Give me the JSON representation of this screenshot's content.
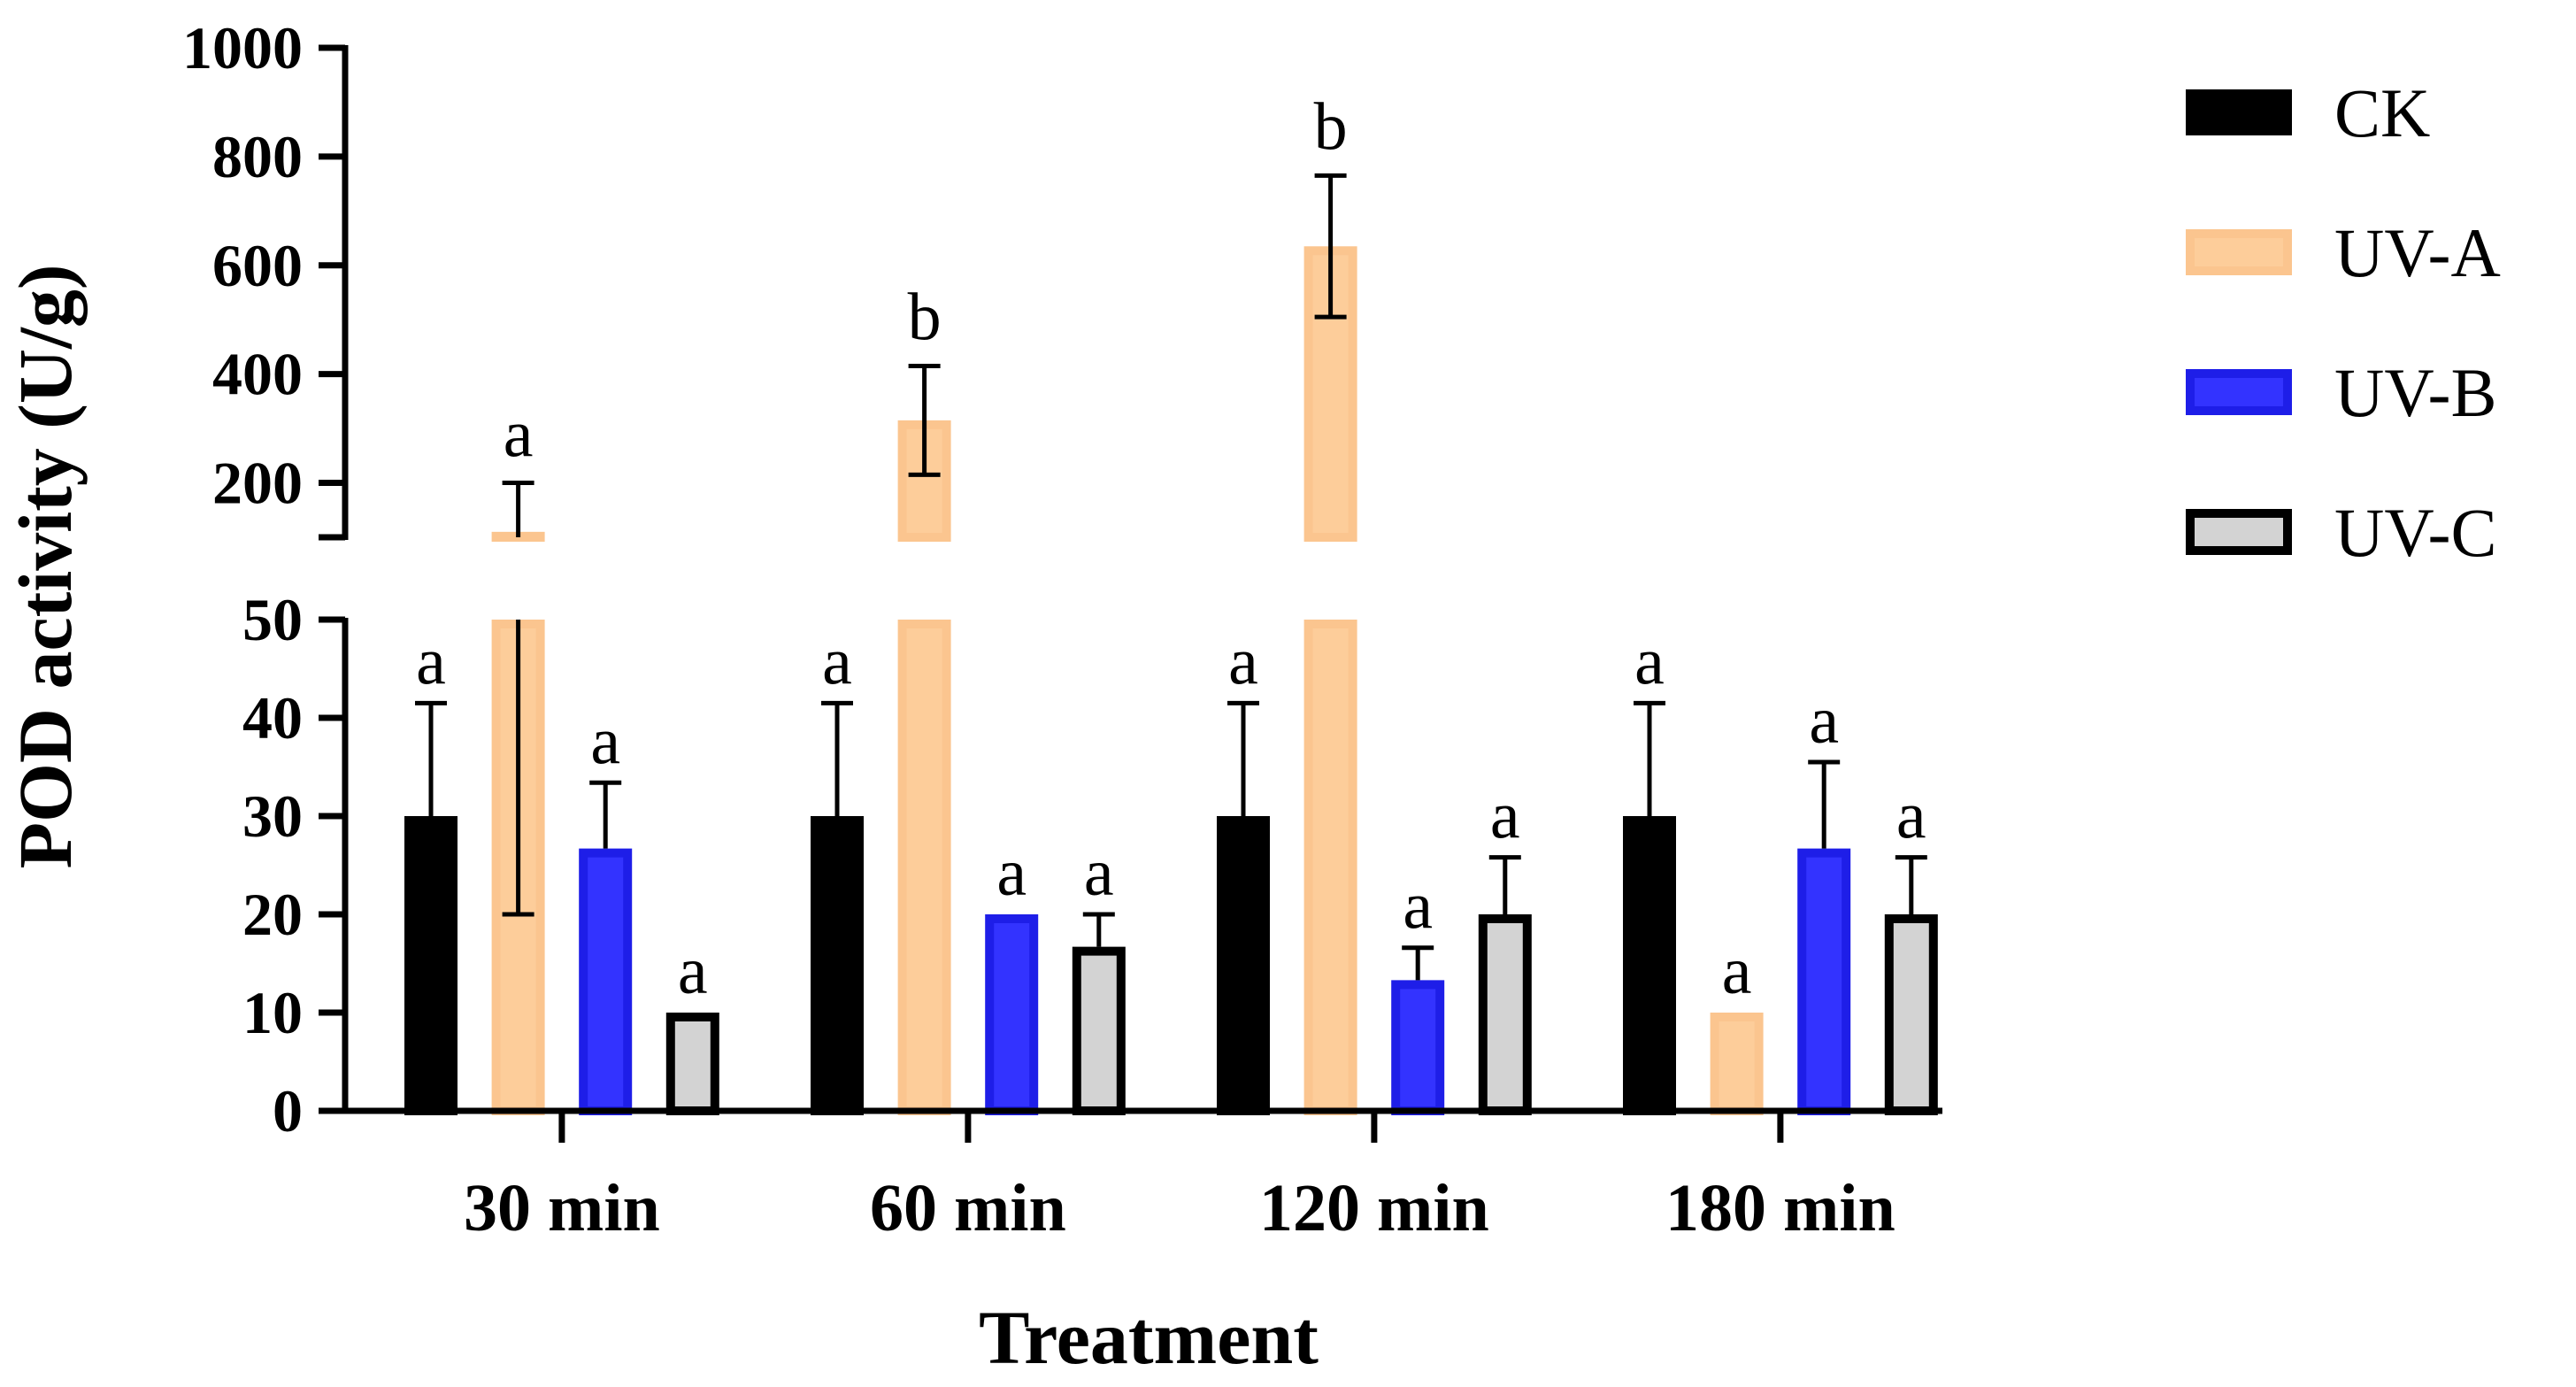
{
  "chart_data": {
    "type": "bar",
    "title": "",
    "xlabel": "Treatment",
    "ylabel": "POD activity (U/g)",
    "categories": [
      "30 min",
      "60 min",
      "120 min",
      "180 min"
    ],
    "axis_break": {
      "lower_ylim": [
        0,
        50
      ],
      "lower_ticks": [
        "0",
        "10",
        "20",
        "30",
        "40",
        "50"
      ],
      "upper_ylim": [
        100,
        1000
      ],
      "upper_ticks": [
        "200",
        "400",
        "600",
        "800",
        "1000"
      ]
    },
    "series": [
      {
        "name": "CK",
        "fill": "#000000",
        "stroke": "#000000",
        "values": [
          30,
          30,
          30,
          30
        ],
        "errors": [
          11.5,
          11.5,
          11.5,
          11.5
        ],
        "significance": [
          "a",
          "a",
          "a",
          "a"
        ]
      },
      {
        "name": "UV-A",
        "fill": "#FDCD9A",
        "stroke": "#FBC58F",
        "values": [
          110,
          315,
          635,
          10
        ],
        "errors": [
          90,
          100,
          130,
          0
        ],
        "significance": [
          "a",
          "b",
          "b",
          "a"
        ]
      },
      {
        "name": "UV-B",
        "fill": "#3333FF",
        "stroke": "#1E1EE8",
        "values": [
          26.7,
          20,
          13.3,
          26.7
        ],
        "errors": [
          6.7,
          0,
          3.3,
          8.8
        ],
        "significance": [
          "a",
          "a",
          "a",
          "a"
        ]
      },
      {
        "name": "UV-C",
        "fill": "#D3D3D3",
        "stroke": "#000000",
        "values": [
          10,
          16.7,
          20,
          20
        ],
        "errors": [
          0,
          3.3,
          5.8,
          5.8
        ],
        "significance": [
          "a",
          "a",
          "a",
          "a"
        ]
      }
    ]
  }
}
